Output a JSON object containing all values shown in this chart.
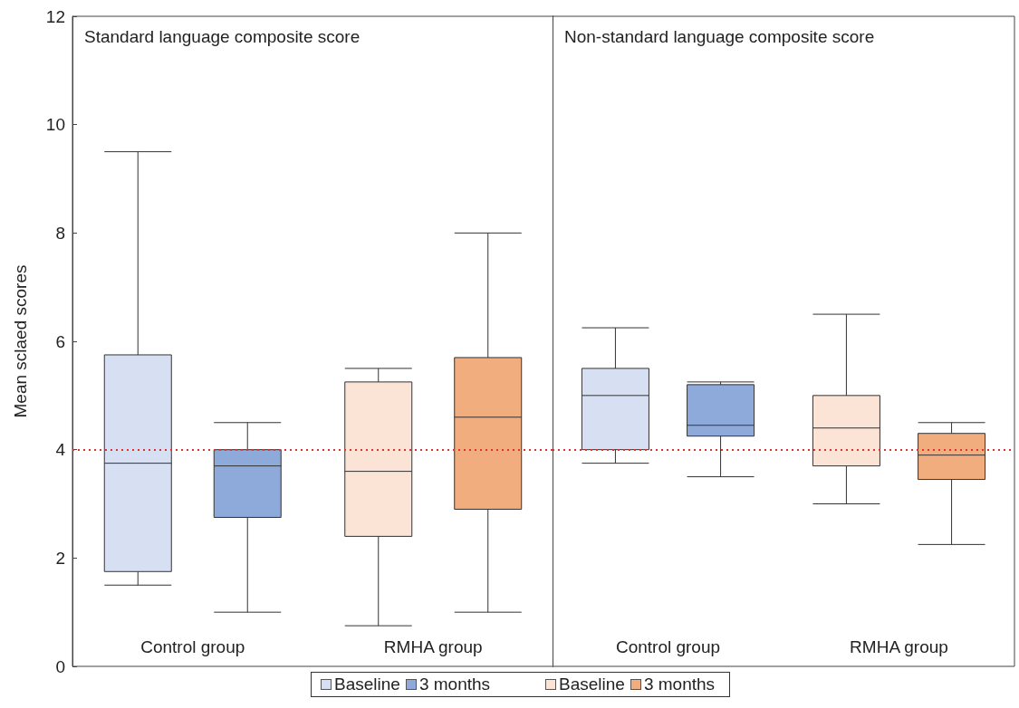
{
  "chart_data": [
    {
      "type": "box",
      "title": "Standard language composite score",
      "ylabel": "Mean sclaed scores",
      "categories": [
        "Control group",
        "RMHA group"
      ],
      "ylim": [
        0,
        12
      ],
      "yticks": [
        0,
        2,
        4,
        6,
        8,
        10,
        12
      ],
      "legend": "bottom",
      "grid": false,
      "ref_lines": [
        {
          "axis": "y",
          "value": 4,
          "color": "#e03030",
          "line_style": "dotted"
        }
      ],
      "series": [
        {
          "name": "Baseline",
          "color": "#d6e0f2",
          "boxes": [
            {
              "low": 1.5,
              "q1": 1.75,
              "median": 3.75,
              "q3": 5.75,
              "high": 9.5
            },
            null
          ]
        },
        {
          "name": "3 months",
          "color": "#8eaadb",
          "boxes": [
            {
              "low": 1.0,
              "q1": 2.75,
              "median": 3.7,
              "q3": 4.0,
              "high": 4.5
            },
            null
          ]
        },
        {
          "name": "Baseline",
          "color": "#fbe3d5",
          "boxes": [
            null,
            {
              "low": 0.75,
              "q1": 2.4,
              "median": 3.6,
              "q3": 5.25,
              "high": 5.5
            }
          ]
        },
        {
          "name": "3 months",
          "color": "#f1ad7e",
          "boxes": [
            null,
            {
              "low": 1.0,
              "q1": 2.9,
              "median": 4.6,
              "q3": 5.7,
              "high": 8.0
            }
          ]
        }
      ]
    },
    {
      "type": "box",
      "title": "Non-standard language composite score",
      "categories": [
        "Control group",
        "RMHA group"
      ],
      "ylim": [
        0,
        12
      ],
      "yticks": [
        0,
        2,
        4,
        6,
        8,
        10,
        12
      ],
      "tick_labels": "x",
      "legend": "bottom",
      "grid": false,
      "ref_lines": [
        {
          "axis": "y",
          "value": 4,
          "color": "#e03030",
          "line_style": "dotted"
        }
      ],
      "series": [
        {
          "name": "Baseline",
          "color": "#d6e0f2",
          "boxes": [
            {
              "low": 3.75,
              "q1": 4.0,
              "median": 5.0,
              "q3": 5.5,
              "high": 6.25
            },
            null
          ]
        },
        {
          "name": "3 months",
          "color": "#8eaadb",
          "boxes": [
            {
              "low": 3.5,
              "q1": 4.25,
              "median": 4.45,
              "q3": 5.2,
              "high": 5.25
            },
            null
          ]
        },
        {
          "name": "Baseline",
          "color": "#fbe3d5",
          "boxes": [
            null,
            {
              "low": 3.0,
              "q1": 3.7,
              "median": 4.4,
              "q3": 5.0,
              "high": 6.5
            }
          ]
        },
        {
          "name": "3 months",
          "color": "#f1ad7e",
          "boxes": [
            null,
            {
              "low": 2.25,
              "q1": 3.45,
              "median": 3.9,
              "q3": 4.3,
              "high": 4.5
            }
          ]
        }
      ]
    }
  ]
}
